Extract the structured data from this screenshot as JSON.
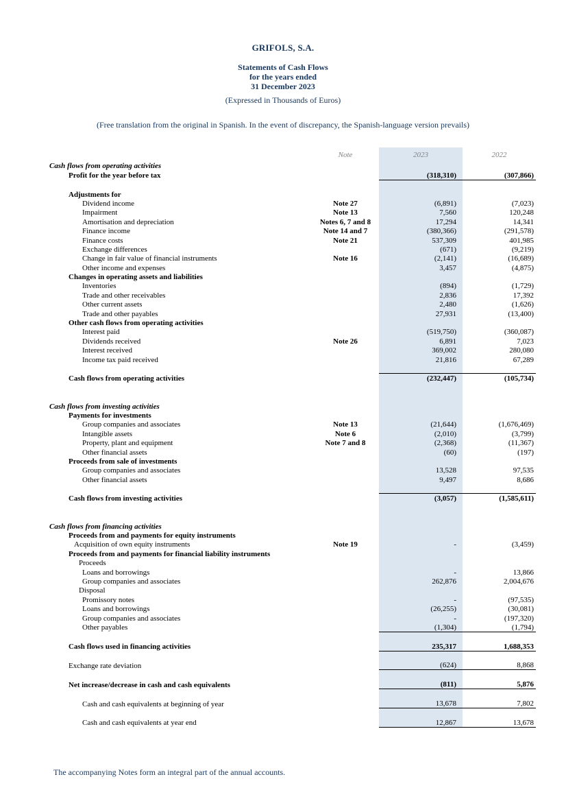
{
  "header": {
    "company": "GRIFOLS, S.A.",
    "title": "Statements of Cash Flows",
    "period": "for the years ended",
    "date": "31 December 2023",
    "units": "(Expressed in Thousands of Euros)",
    "translation": "(Free translation from the original in Spanish. In the event of discrepancy, the Spanish-language version prevails)"
  },
  "colors": {
    "text_navy": "#17365d",
    "column_shade_2023": "#dce6f1",
    "rule_line": "#000000"
  },
  "table": {
    "columns": [
      "Note",
      "2023",
      "2022"
    ],
    "rows": [
      {
        "label": "Cash flows from operating activities",
        "style": "section",
        "indent": 0
      },
      {
        "label": "Profit for the year before tax",
        "style": "bold",
        "indent": 1,
        "v2023": "(318,310)",
        "v2022": "(307,866)",
        "border": "bottom"
      },
      {
        "style": "spacer"
      },
      {
        "label": "Adjustments for",
        "style": "bold",
        "indent": 1
      },
      {
        "label": "Dividend income",
        "note": "Note 27",
        "indent": 4,
        "v2023": "(6,891)",
        "v2022": "(7,023)"
      },
      {
        "label": "Impairment",
        "note": "Note 13",
        "indent": 4,
        "v2023": "7,560",
        "v2022": "120,248"
      },
      {
        "label": "Amortisation and depreciation",
        "note": "Notes 6, 7 and 8",
        "indent": 4,
        "v2023": "17,294",
        "v2022": "14,341"
      },
      {
        "label": "Finance income",
        "note": "Note 14 and 7",
        "indent": 4,
        "v2023": "(380,366)",
        "v2022": "(291,578)"
      },
      {
        "label": "Finance costs",
        "note": "Note 21",
        "indent": 4,
        "v2023": "537,309",
        "v2022": "401,985"
      },
      {
        "label": "Exchange differences",
        "indent": 4,
        "v2023": "(671)",
        "v2022": "(9,219)"
      },
      {
        "label": "Change in fair value of financial instruments",
        "note": "Note 16",
        "indent": 4,
        "v2023": "(2,141)",
        "v2022": "(16,689)"
      },
      {
        "label": "Other income and expenses",
        "indent": 4,
        "v2023": "3,457",
        "v2022": "(4,875)"
      },
      {
        "label": "Changes in operating assets and liabilities",
        "style": "bold",
        "indent": 1
      },
      {
        "label": "Inventories",
        "indent": 4,
        "v2023": "(894)",
        "v2022": "(1,729)"
      },
      {
        "label": "Trade and other receivables",
        "indent": 4,
        "v2023": "2,836",
        "v2022": "17,392"
      },
      {
        "label": "Other current assets",
        "indent": 4,
        "v2023": "2,480",
        "v2022": "(1,626)"
      },
      {
        "label": "Trade and other payables",
        "indent": 4,
        "v2023": "27,931",
        "v2022": "(13,400)"
      },
      {
        "label": "Other cash flows from operating activities",
        "style": "bold",
        "indent": 1
      },
      {
        "label": "Interest paid",
        "indent": 4,
        "v2023": "(519,750)",
        "v2022": "(360,087)"
      },
      {
        "label": "Dividends received",
        "note": "Note 26",
        "indent": 4,
        "v2023": "6,891",
        "v2022": "7,023"
      },
      {
        "label": "Interest received",
        "indent": 4,
        "v2023": "369,002",
        "v2022": "280,080"
      },
      {
        "label": "Income tax paid received",
        "indent": 4,
        "v2023": "21,816",
        "v2022": "67,289"
      },
      {
        "style": "spacer"
      },
      {
        "label": "Cash flows from operating activities",
        "style": "bold",
        "indent": 1,
        "v2023": "(232,447)",
        "v2022": "(105,734)",
        "border": "top"
      },
      {
        "style": "spacer"
      },
      {
        "style": "spacer"
      },
      {
        "label": "Cash flows from investing activities",
        "style": "section",
        "indent": 0
      },
      {
        "label": "Payments for investments",
        "style": "bold",
        "indent": 1
      },
      {
        "label": "Group companies and associates",
        "note": "Note 13",
        "indent": 4,
        "v2023": "(21,644)",
        "v2022": "(1,676,469)"
      },
      {
        "label": "Intangible assets",
        "note": "Note 6",
        "indent": 4,
        "v2023": "(2,010)",
        "v2022": "(3,799)"
      },
      {
        "label": "Property, plant and equipment",
        "note": "Note 7 and 8",
        "indent": 4,
        "v2023": "(2,368)",
        "v2022": "(11,367)"
      },
      {
        "label": "Other financial assets",
        "indent": 4,
        "v2023": "(60)",
        "v2022": "(197)"
      },
      {
        "label": "Proceeds from sale of investments",
        "style": "bold",
        "indent": 1
      },
      {
        "label": "Group companies and associates",
        "indent": 4,
        "v2023": "13,528",
        "v2022": "97,535"
      },
      {
        "label": "Other financial assets",
        "indent": 4,
        "v2023": "9,497",
        "v2022": "8,686"
      },
      {
        "style": "spacer"
      },
      {
        "label": "Cash flows from investing activities",
        "style": "bold",
        "indent": 1,
        "v2023": "(3,057)",
        "v2022": "(1,585,611)",
        "border": "top"
      },
      {
        "style": "spacer"
      },
      {
        "style": "spacer"
      },
      {
        "label": "Cash flows from financing activities",
        "style": "section",
        "indent": 0
      },
      {
        "label": "Proceeds from and payments for equity instruments",
        "style": "bold",
        "indent": 1
      },
      {
        "label": "Acquisition of own equity instruments",
        "note": "Note 19",
        "indent": 2,
        "v2023": "-",
        "v2022": "(3,459)"
      },
      {
        "label": "Proceeds from and payments for financial liability instruments",
        "style": "bold",
        "indent": 1
      },
      {
        "label": "Proceeds",
        "indent": 3
      },
      {
        "label": "Loans and borrowings",
        "indent": 4,
        "v2023": "-",
        "v2022": "13,866"
      },
      {
        "label": "Group companies and associates",
        "indent": 4,
        "v2023": "262,876",
        "v2022": "2,004,676"
      },
      {
        "label": "Disposal",
        "indent": 3
      },
      {
        "label": "Promissory notes",
        "indent": 4,
        "v2023": "-",
        "v2022": "(97,535)"
      },
      {
        "label": "Loans and borrowings",
        "indent": 4,
        "v2023": "(26,255)",
        "v2022": "(30,081)"
      },
      {
        "label": "Group companies and associates",
        "indent": 4,
        "v2023": "-",
        "v2022": "(197,320)"
      },
      {
        "label": "Other payables",
        "indent": 4,
        "v2023": "(1,304)",
        "v2022": "(1,794)",
        "border": "bottom"
      },
      {
        "style": "spacer"
      },
      {
        "label": "Cash flows used in financing activities",
        "style": "bold",
        "indent": 1,
        "v2023": "235,317",
        "v2022": "1,688,353",
        "border": "bottom"
      },
      {
        "style": "spacer"
      },
      {
        "label": "Exchange rate deviation",
        "indent": 1,
        "v2023": "(624)",
        "v2022": "8,868",
        "border": "bottom"
      },
      {
        "style": "spacer"
      },
      {
        "label": "Net increase/decrease in cash and cash equivalents",
        "style": "bold",
        "indent": 1,
        "v2023": "(811)",
        "v2022": "5,876",
        "border": "bottom"
      },
      {
        "style": "spacer"
      },
      {
        "label": "Cash and cash equivalents at beginning of year",
        "indent": 4,
        "v2023": "13,678",
        "v2022": "7,802",
        "border": "bottom"
      },
      {
        "style": "spacer"
      },
      {
        "label": "Cash and cash equivalents at year end",
        "indent": 4,
        "v2023": "12,867",
        "v2022": "13,678",
        "border": "bottom"
      }
    ]
  },
  "footer": "The accompanying Notes form an integral part of the annual accounts."
}
